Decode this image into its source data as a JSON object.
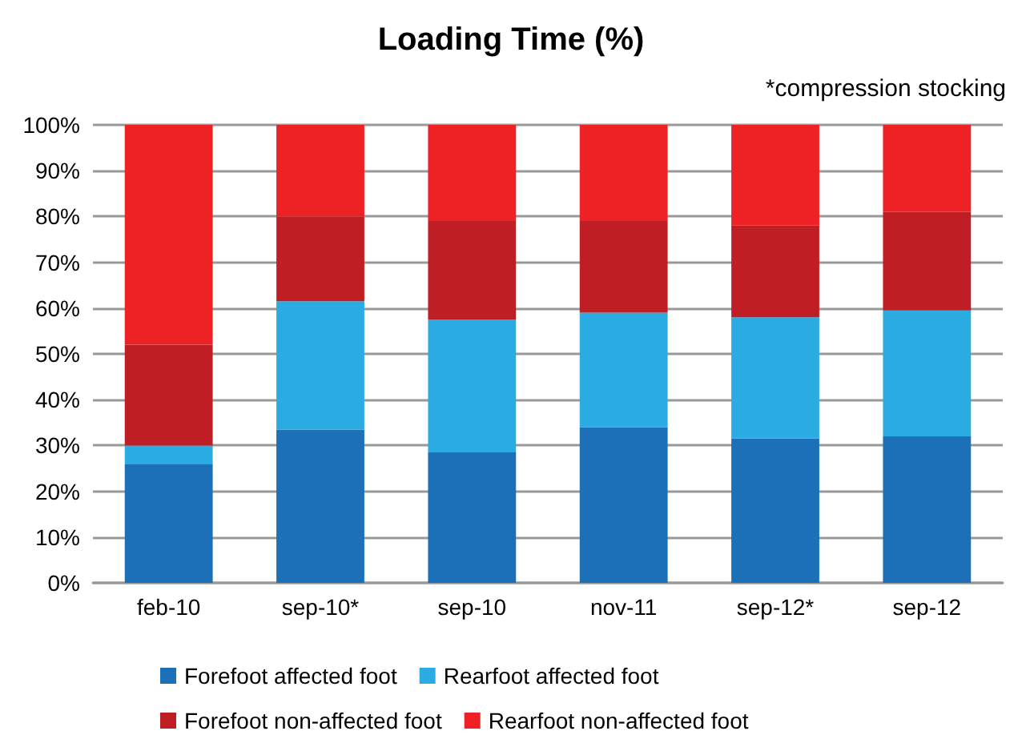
{
  "chart_data": {
    "type": "bar",
    "stacked": true,
    "title": "Loading Time (%)",
    "annotations": [
      "*compression stocking"
    ],
    "categories": [
      "feb-10",
      "sep-10*",
      "sep-10",
      "nov-11",
      "sep-12*",
      "sep-12"
    ],
    "series": [
      {
        "name": "Forefoot affected foot",
        "color": "#1b70b8",
        "values": [
          26,
          33.5,
          28.5,
          34,
          31.5,
          32
        ]
      },
      {
        "name": "Rearfoot affected foot",
        "color": "#2aace2",
        "values": [
          4,
          28,
          29,
          25,
          26.5,
          27.5
        ]
      },
      {
        "name": "Forefoot non-affected foot",
        "color": "#be1e24",
        "values": [
          22,
          18.5,
          21.5,
          20,
          20,
          21.5
        ]
      },
      {
        "name": "Rearfoot non-affected foot",
        "color": "#ee2125",
        "values": [
          48,
          20,
          21,
          21,
          22,
          19
        ]
      }
    ],
    "ylim": [
      0,
      100
    ],
    "yticks": [
      {
        "value": 0,
        "label": "0%"
      },
      {
        "value": 10,
        "label": "10%"
      },
      {
        "value": 20,
        "label": "20%"
      },
      {
        "value": 30,
        "label": "30%"
      },
      {
        "value": 40,
        "label": "40%"
      },
      {
        "value": 50,
        "label": "50%"
      },
      {
        "value": 60,
        "label": "60%"
      },
      {
        "value": 70,
        "label": "70%"
      },
      {
        "value": 80,
        "label": "80%"
      },
      {
        "value": 90,
        "label": "90%"
      },
      {
        "value": 100,
        "label": "100%"
      }
    ],
    "grid": "y",
    "legend": "bottom"
  }
}
